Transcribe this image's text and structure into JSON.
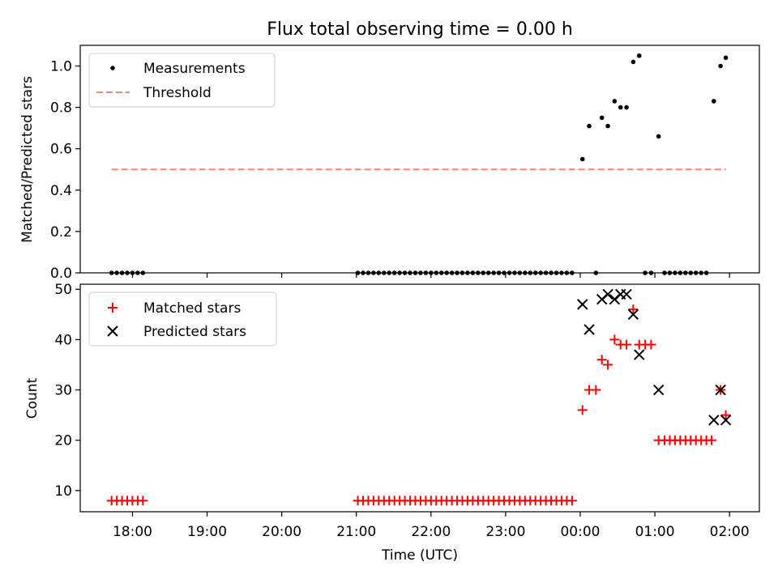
{
  "figure": {
    "title": "Flux total observing time = 0.00 h",
    "xlabel": "Time (UTC)",
    "x_tick_labels": [
      "18:00",
      "19:00",
      "20:00",
      "21:00",
      "22:00",
      "23:00",
      "00:00",
      "01:00",
      "02:00"
    ]
  },
  "colors": {
    "measurement": "#000000",
    "threshold": "#ff7f7f",
    "matched": "#ff0000",
    "predicted": "#000000"
  },
  "chart_data": [
    {
      "type": "scatter",
      "ylabel": "Matched/Predicted stars",
      "x_unit": "hours after 18:00 UTC",
      "xlim": [
        -0.7,
        8.4
      ],
      "ylim": [
        0.0,
        1.1
      ],
      "yticks": [
        0.0,
        0.2,
        0.4,
        0.6,
        0.8,
        1.0
      ],
      "y_tick_labels": [
        "0.0",
        "0.2",
        "0.4",
        "0.6",
        "0.8",
        "1.0"
      ],
      "legend": {
        "placement": "top-left",
        "entries": [
          "Measurements",
          "Threshold"
        ]
      },
      "series": [
        {
          "name": "Measurements",
          "marker": "dot",
          "points": [
            [
              -0.28,
              0
            ],
            [
              -0.21,
              0
            ],
            [
              -0.14,
              0
            ],
            [
              -0.07,
              0
            ],
            [
              0.0,
              0
            ],
            [
              0.07,
              0
            ],
            [
              0.14,
              0
            ],
            [
              3.02,
              0
            ],
            [
              3.09,
              0
            ],
            [
              3.16,
              0
            ],
            [
              3.23,
              0
            ],
            [
              3.3,
              0
            ],
            [
              3.37,
              0
            ],
            [
              3.44,
              0
            ],
            [
              3.51,
              0
            ],
            [
              3.58,
              0
            ],
            [
              3.65,
              0
            ],
            [
              3.72,
              0
            ],
            [
              3.79,
              0
            ],
            [
              3.86,
              0
            ],
            [
              3.93,
              0
            ],
            [
              4.0,
              0
            ],
            [
              4.07,
              0
            ],
            [
              4.14,
              0
            ],
            [
              4.21,
              0
            ],
            [
              4.28,
              0
            ],
            [
              4.35,
              0
            ],
            [
              4.42,
              0
            ],
            [
              4.49,
              0
            ],
            [
              4.56,
              0
            ],
            [
              4.63,
              0
            ],
            [
              4.7,
              0
            ],
            [
              4.77,
              0
            ],
            [
              4.84,
              0
            ],
            [
              4.91,
              0
            ],
            [
              4.98,
              0
            ],
            [
              5.05,
              0
            ],
            [
              5.12,
              0
            ],
            [
              5.19,
              0
            ],
            [
              5.26,
              0
            ],
            [
              5.33,
              0
            ],
            [
              5.4,
              0
            ],
            [
              5.47,
              0
            ],
            [
              5.54,
              0
            ],
            [
              5.61,
              0
            ],
            [
              5.68,
              0
            ],
            [
              5.75,
              0
            ],
            [
              5.82,
              0
            ],
            [
              5.89,
              0
            ],
            [
              6.03,
              0.55
            ],
            [
              6.12,
              0.71
            ],
            [
              6.21,
              0
            ],
            [
              6.29,
              0.75
            ],
            [
              6.37,
              0.71
            ],
            [
              6.46,
              0.83
            ],
            [
              6.54,
              0.8
            ],
            [
              6.62,
              0.8
            ],
            [
              6.71,
              1.02
            ],
            [
              6.79,
              1.05
            ],
            [
              6.87,
              0
            ],
            [
              6.95,
              0
            ],
            [
              7.05,
              0.66
            ],
            [
              7.13,
              0
            ],
            [
              7.2,
              0
            ],
            [
              7.27,
              0
            ],
            [
              7.34,
              0
            ],
            [
              7.41,
              0
            ],
            [
              7.48,
              0
            ],
            [
              7.55,
              0
            ],
            [
              7.62,
              0
            ],
            [
              7.69,
              0
            ],
            [
              7.79,
              0.83
            ],
            [
              7.88,
              1.0
            ],
            [
              7.95,
              1.04
            ]
          ]
        },
        {
          "name": "Threshold",
          "marker": "dashed-line",
          "points": [
            [
              -0.28,
              0.5
            ],
            [
              7.95,
              0.5
            ]
          ]
        }
      ]
    },
    {
      "type": "scatter",
      "ylabel": "Count",
      "x_unit": "hours after 18:00 UTC",
      "xlim": [
        -0.7,
        8.4
      ],
      "ylim": [
        5.8,
        51.0
      ],
      "yticks": [
        10,
        20,
        30,
        40,
        50
      ],
      "y_tick_labels": [
        "10",
        "20",
        "30",
        "40",
        "50"
      ],
      "legend": {
        "placement": "top-left",
        "entries": [
          "Matched stars",
          "Predicted stars"
        ]
      },
      "series": [
        {
          "name": "Matched stars",
          "marker": "plus",
          "points": [
            [
              -0.28,
              8
            ],
            [
              -0.21,
              8
            ],
            [
              -0.14,
              8
            ],
            [
              -0.07,
              8
            ],
            [
              0.0,
              8
            ],
            [
              0.07,
              8
            ],
            [
              0.14,
              8
            ],
            [
              3.02,
              8
            ],
            [
              3.09,
              8
            ],
            [
              3.16,
              8
            ],
            [
              3.23,
              8
            ],
            [
              3.3,
              8
            ],
            [
              3.37,
              8
            ],
            [
              3.44,
              8
            ],
            [
              3.51,
              8
            ],
            [
              3.58,
              8
            ],
            [
              3.65,
              8
            ],
            [
              3.72,
              8
            ],
            [
              3.79,
              8
            ],
            [
              3.86,
              8
            ],
            [
              3.93,
              8
            ],
            [
              4.0,
              8
            ],
            [
              4.07,
              8
            ],
            [
              4.14,
              8
            ],
            [
              4.21,
              8
            ],
            [
              4.28,
              8
            ],
            [
              4.35,
              8
            ],
            [
              4.42,
              8
            ],
            [
              4.49,
              8
            ],
            [
              4.56,
              8
            ],
            [
              4.63,
              8
            ],
            [
              4.7,
              8
            ],
            [
              4.77,
              8
            ],
            [
              4.84,
              8
            ],
            [
              4.91,
              8
            ],
            [
              4.98,
              8
            ],
            [
              5.05,
              8
            ],
            [
              5.12,
              8
            ],
            [
              5.19,
              8
            ],
            [
              5.26,
              8
            ],
            [
              5.33,
              8
            ],
            [
              5.4,
              8
            ],
            [
              5.47,
              8
            ],
            [
              5.54,
              8
            ],
            [
              5.61,
              8
            ],
            [
              5.68,
              8
            ],
            [
              5.75,
              8
            ],
            [
              5.82,
              8
            ],
            [
              5.89,
              8
            ],
            [
              6.03,
              26
            ],
            [
              6.12,
              30
            ],
            [
              6.21,
              30
            ],
            [
              6.29,
              36
            ],
            [
              6.37,
              35
            ],
            [
              6.46,
              40
            ],
            [
              6.54,
              39
            ],
            [
              6.62,
              39
            ],
            [
              6.71,
              46
            ],
            [
              6.79,
              39
            ],
            [
              6.87,
              39
            ],
            [
              6.95,
              39
            ],
            [
              7.05,
              20
            ],
            [
              7.13,
              20
            ],
            [
              7.2,
              20
            ],
            [
              7.27,
              20
            ],
            [
              7.34,
              20
            ],
            [
              7.41,
              20
            ],
            [
              7.48,
              20
            ],
            [
              7.55,
              20
            ],
            [
              7.62,
              20
            ],
            [
              7.69,
              20
            ],
            [
              7.76,
              20
            ],
            [
              7.88,
              30
            ],
            [
              7.95,
              25
            ]
          ]
        },
        {
          "name": "Predicted stars",
          "marker": "x",
          "points": [
            [
              6.03,
              47
            ],
            [
              6.12,
              42
            ],
            [
              6.29,
              48
            ],
            [
              6.37,
              49
            ],
            [
              6.46,
              48
            ],
            [
              6.54,
              49
            ],
            [
              6.62,
              49
            ],
            [
              6.71,
              45
            ],
            [
              6.79,
              37
            ],
            [
              7.05,
              30
            ],
            [
              7.79,
              24
            ],
            [
              7.88,
              30
            ],
            [
              7.95,
              24
            ]
          ]
        }
      ]
    }
  ]
}
